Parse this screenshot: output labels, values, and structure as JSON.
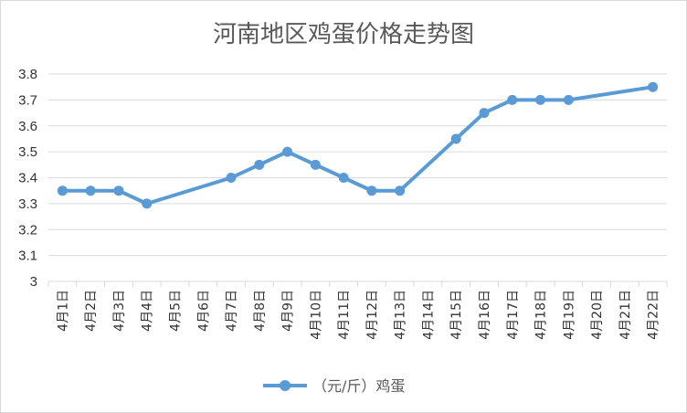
{
  "chart_data": {
    "type": "line",
    "title": "河南地区鸡蛋价格走势图",
    "xlabel": "",
    "ylabel": "",
    "categories": [
      "4月1日",
      "4月2日",
      "4月3日",
      "4月4日",
      "4月5日",
      "4月6日",
      "4月7日",
      "4月8日",
      "4月9日",
      "4月10日",
      "4月11日",
      "4月12日",
      "4月13日",
      "4月14日",
      "4月15日",
      "4月16日",
      "4月17日",
      "4月18日",
      "4月19日",
      "4月20日",
      "4月21日",
      "4月22日"
    ],
    "yticks": [
      "3",
      "3.1",
      "3.2",
      "3.3",
      "3.4",
      "3.5",
      "3.6",
      "3.7",
      "3.8"
    ],
    "ylim": [
      3,
      3.8
    ],
    "grid": true,
    "legend_position": "bottom",
    "series": [
      {
        "name": "（元/斤）鸡蛋",
        "color": "#5b9bd5",
        "values": [
          3.35,
          3.35,
          3.35,
          3.3,
          null,
          null,
          3.4,
          3.45,
          3.5,
          3.45,
          3.4,
          3.35,
          3.35,
          null,
          3.55,
          3.65,
          3.7,
          3.7,
          3.7,
          null,
          null,
          3.75
        ]
      }
    ]
  }
}
